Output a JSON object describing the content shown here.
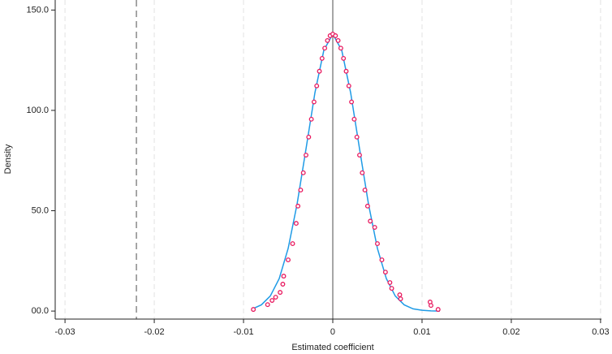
{
  "chart_data": {
    "type": "scatter",
    "xlabel": "Estimated coefficient",
    "ylabel": "Density",
    "xlim": [
      -0.0311,
      0.0301
    ],
    "ylim": [
      -4,
      155
    ],
    "xticks": [
      -0.03,
      -0.02,
      -0.01,
      0,
      0.01,
      0.02,
      0.03
    ],
    "yticks": [
      {
        "value": 0,
        "label": "00.0"
      },
      {
        "value": 50,
        "label": "50.0"
      },
      {
        "value": 100,
        "label": "100.0"
      },
      {
        "value": 150,
        "label": "150.0"
      }
    ],
    "xgrid": true,
    "vlines": [
      {
        "value": -0.022,
        "style": "dashed",
        "color": "#888888"
      },
      {
        "value": 0,
        "style": "solid",
        "color": "#888888"
      }
    ],
    "series": [
      {
        "type": "line",
        "color": "#1f9be6",
        "x": [
          -0.009,
          -0.008,
          -0.007,
          -0.006,
          -0.005,
          -0.004,
          -0.003,
          -0.002,
          -0.001,
          0,
          0.001,
          0.002,
          0.003,
          0.004,
          0.005,
          0.006,
          0.007,
          0.008,
          0.009,
          0.01,
          0.011,
          0.012
        ],
        "values": [
          1.1,
          3.1,
          7.5,
          16.2,
          31.2,
          53.3,
          80.8,
          108.8,
          130.0,
          138,
          130.0,
          108.8,
          80.8,
          53.3,
          31.2,
          16.2,
          7.5,
          3.1,
          1.1,
          0.4,
          0.1,
          0.0
        ]
      },
      {
        "type": "scatter",
        "color": "#e8185e",
        "x": [
          -0.0089,
          -0.0073,
          -0.0068,
          -0.0064,
          -0.0059,
          -0.0056,
          -0.0055,
          -0.005,
          -0.0045,
          -0.0041,
          -0.0039,
          -0.0036,
          -0.0033,
          -0.003,
          -0.0027,
          -0.0024,
          -0.0021,
          -0.0018,
          -0.0015,
          -0.0012,
          -0.0009,
          -0.0006,
          -0.0003,
          0,
          0.0003,
          0.0006,
          0.0009,
          0.0012,
          0.0015,
          0.0018,
          0.0021,
          0.0024,
          0.0027,
          0.003,
          0.0033,
          0.0036,
          0.0039,
          0.0042,
          0.0047,
          0.005,
          0.0055,
          0.0059,
          0.0064,
          0.0066,
          0.0075,
          0.0076,
          0.0109,
          0.011,
          0.0118
        ],
        "values": [
          0.8,
          3.2,
          5.3,
          6.9,
          9.3,
          13.4,
          17.4,
          25.5,
          33.6,
          43.7,
          52.3,
          60.3,
          68.9,
          77.7,
          86.7,
          95.6,
          104.2,
          112.2,
          119.5,
          125.9,
          131.0,
          134.8,
          137.2,
          138,
          137.2,
          134.8,
          131.0,
          125.9,
          119.5,
          112.2,
          104.2,
          95.6,
          86.7,
          77.7,
          68.9,
          60.3,
          52.3,
          44.8,
          41.7,
          33.6,
          25.5,
          19.4,
          14.2,
          11.3,
          8.1,
          6.1,
          4.5,
          2.8,
          0.8
        ]
      }
    ]
  }
}
